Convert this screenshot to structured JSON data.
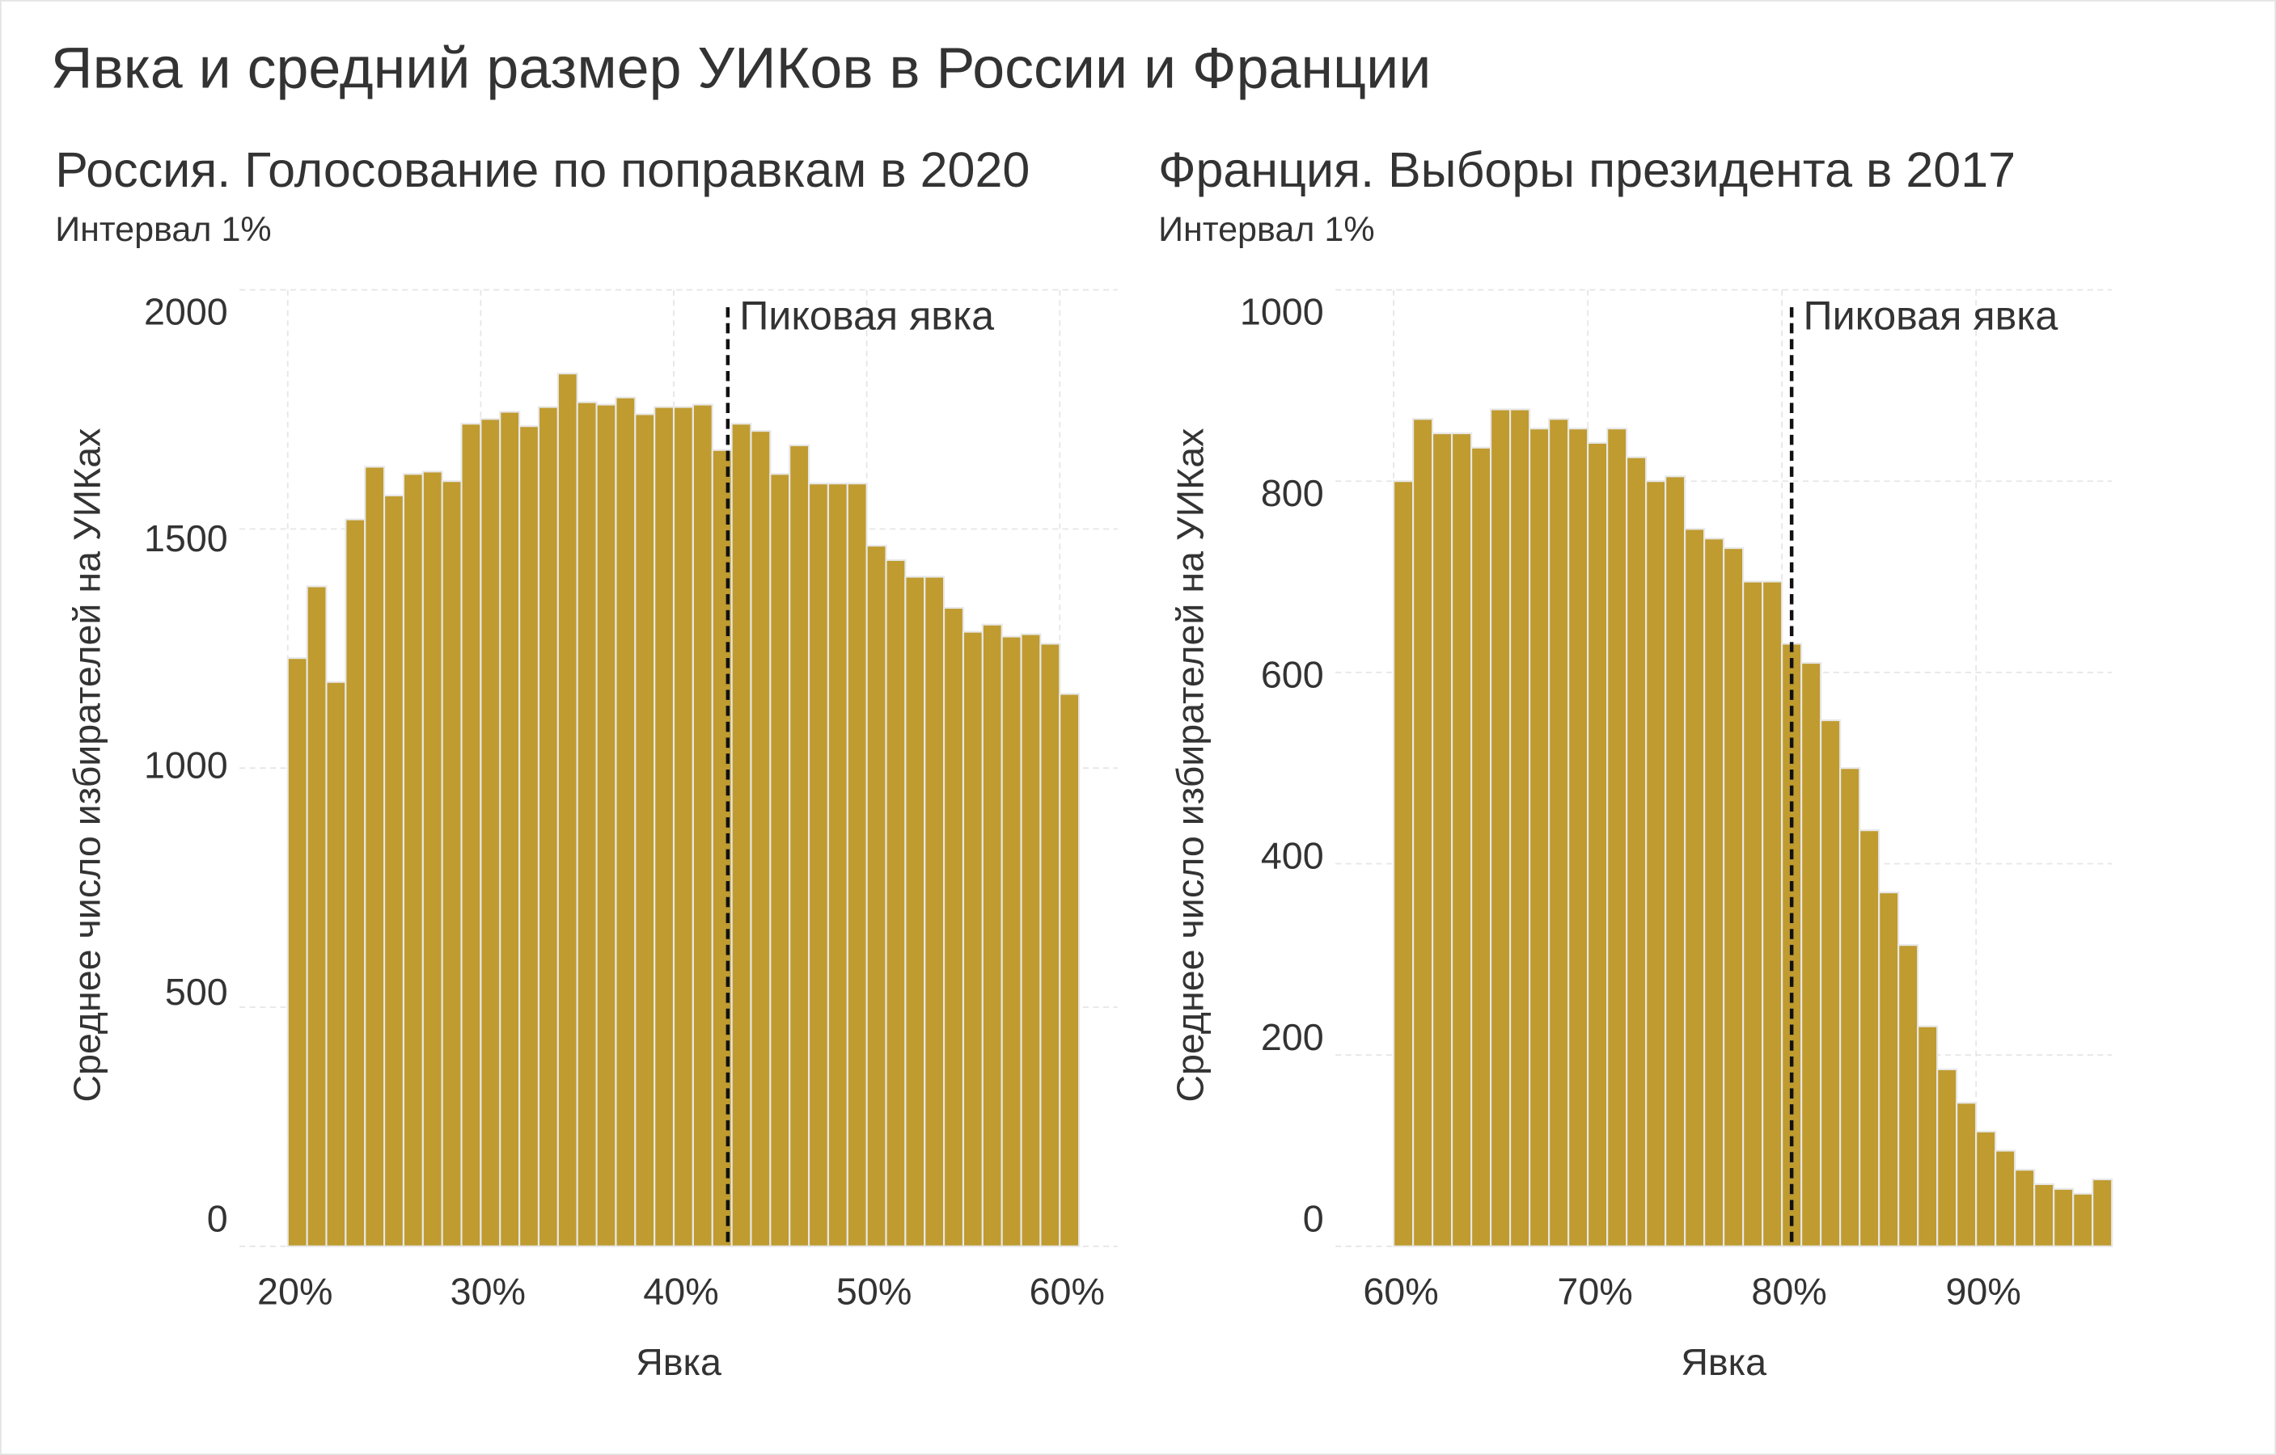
{
  "title": "Явка и средний размер УИКов в России и Франции",
  "chart_data": [
    {
      "type": "histogram",
      "title": "Россия. Голосование по поправкам в 2020",
      "subtitle": "Интервал 1%",
      "x_label": "Явка",
      "y_label": "Среднее число избирателей на УИКах",
      "color": "#bf9b30",
      "grid": true,
      "bins": [
        20,
        21,
        22,
        23,
        24,
        25,
        26,
        27,
        28,
        29,
        30,
        31,
        32,
        33,
        34,
        35,
        36,
        37,
        38,
        39,
        40,
        41,
        42,
        43,
        44,
        45,
        46,
        47,
        48,
        49,
        50,
        51,
        52,
        53,
        54,
        55,
        56,
        57,
        58,
        59,
        60,
        61
      ],
      "values": [
        1230,
        1380,
        1180,
        1520,
        1630,
        1570,
        1615,
        1620,
        1600,
        1720,
        1730,
        1745,
        1715,
        1755,
        1825,
        1765,
        1760,
        1775,
        1740,
        1755,
        1755,
        1760,
        1665,
        1720,
        1705,
        1615,
        1675,
        1595,
        1595,
        1595,
        1465,
        1435,
        1400,
        1400,
        1335,
        1285,
        1300,
        1275,
        1280,
        1260,
        1155
      ],
      "xlim": [
        17.5,
        63
      ],
      "ylim": [
        0,
        2000
      ],
      "xticks": [
        {
          "value": 20,
          "label": "20%"
        },
        {
          "value": 30,
          "label": "30%"
        },
        {
          "value": 40,
          "label": "40%"
        },
        {
          "value": 50,
          "label": "50%"
        },
        {
          "value": 60,
          "label": "60%"
        }
      ],
      "yticks": [
        0,
        500,
        1000,
        1500,
        2000
      ],
      "annotation": {
        "text": "Пиковая явка",
        "x": 42.8
      }
    },
    {
      "type": "histogram",
      "title": "Франция. Выборы президента в 2017",
      "subtitle": "Интервал 1%",
      "x_label": "Явка",
      "y_label": "Среднее число избирателей на УИКах",
      "color": "#bf9b30",
      "grid": true,
      "bins": [
        60,
        61,
        62,
        63,
        64,
        65,
        66,
        67,
        68,
        69,
        70,
        71,
        72,
        73,
        74,
        75,
        76,
        77,
        78,
        79,
        80,
        81,
        82,
        83,
        84,
        85,
        86,
        87,
        88,
        89,
        90,
        91,
        92,
        93,
        94,
        95,
        96,
        97
      ],
      "values": [
        800,
        865,
        850,
        850,
        835,
        875,
        875,
        855,
        865,
        855,
        840,
        855,
        825,
        800,
        805,
        750,
        740,
        730,
        695,
        695,
        630,
        610,
        550,
        500,
        435,
        370,
        315,
        230,
        185,
        150,
        120,
        100,
        80,
        65,
        60,
        55,
        70
      ],
      "xlim": [
        57,
        97
      ],
      "ylim": [
        0,
        1000
      ],
      "xticks": [
        {
          "value": 60,
          "label": "60%"
        },
        {
          "value": 70,
          "label": "70%"
        },
        {
          "value": 80,
          "label": "80%"
        },
        {
          "value": 90,
          "label": "90%"
        }
      ],
      "yticks": [
        0,
        200,
        400,
        600,
        800,
        1000
      ],
      "annotation": {
        "text": "Пиковая явка",
        "x": 80.5
      }
    }
  ]
}
